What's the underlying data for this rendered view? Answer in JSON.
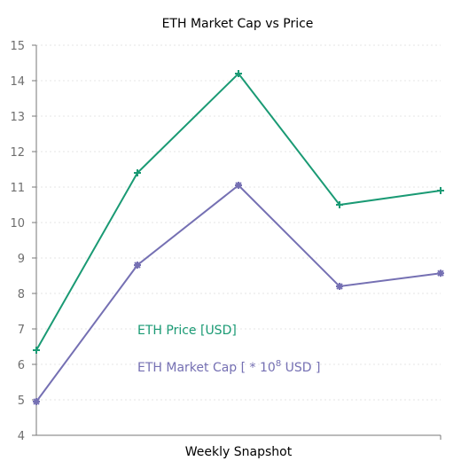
{
  "chart_data": {
    "type": "line",
    "title": "ETH Market Cap vs Price",
    "xlabel": "Weekly Snapshot",
    "ylabel": "",
    "ylim": [
      4,
      15
    ],
    "yticks": [
      4,
      5,
      6,
      7,
      8,
      9,
      10,
      11,
      12,
      13,
      14,
      15
    ],
    "grid": true,
    "series": [
      {
        "name": "ETH Price [USD]",
        "color": "#1a9a74",
        "marker": "plus",
        "values": [
          6.4,
          11.4,
          14.2,
          10.5,
          10.9
        ]
      },
      {
        "name": "ETH Market Cap [ * 10",
        "name_sup": "8",
        "name_suffix": " USD ]",
        "color": "#7570b3",
        "marker": "asterisk",
        "values": [
          4.95,
          8.8,
          11.05,
          8.2,
          8.57
        ]
      }
    ]
  }
}
